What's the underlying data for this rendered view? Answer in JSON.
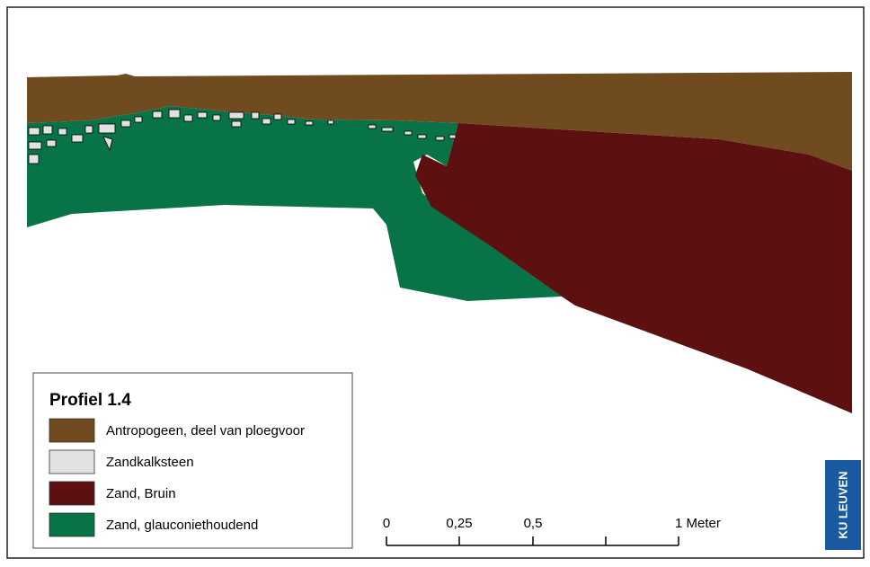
{
  "legend": {
    "title": "Profiel 1.4",
    "items": [
      {
        "label": "Antropogeen, deel van ploegvoor",
        "color": "#6f4b1f"
      },
      {
        "label": "Zandkalksteen",
        "color": "#e1e1e1"
      },
      {
        "label": "Zand, Bruin",
        "color": "#5c1010"
      },
      {
        "label": "Zand, glauconiethoudend",
        "color": "#087347"
      }
    ]
  },
  "scale_bar": {
    "labels": [
      "0",
      "0,25",
      "0,5",
      "1 Meter"
    ]
  },
  "logo": {
    "text": "KU LEUVEN"
  }
}
